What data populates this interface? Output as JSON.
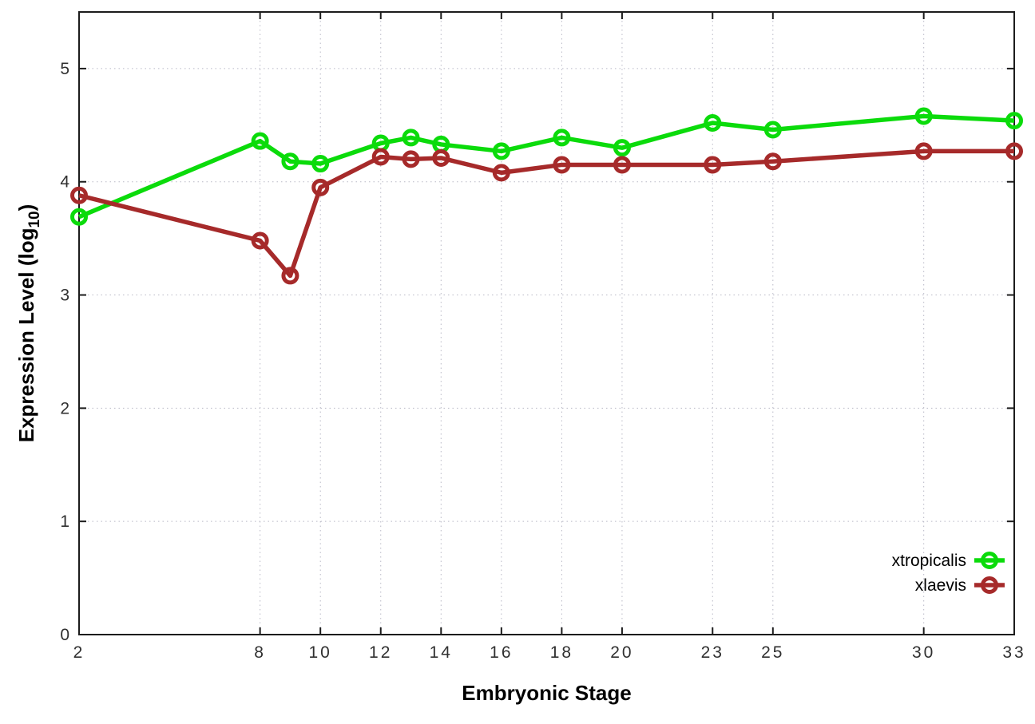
{
  "figure": {
    "background": "#ffffff",
    "border_color": "#1c1c1c",
    "grid_color": "#b9b9c6",
    "tick_label_color": "#303030"
  },
  "chart_data": {
    "type": "line",
    "title": "",
    "xlabel": "Embryonic Stage",
    "ylabel": {
      "prefix": "Expression Level (log",
      "subscript": "10",
      "suffix": ")"
    },
    "x": [
      2,
      8,
      9,
      10,
      12,
      13,
      14,
      16,
      18,
      20,
      23,
      25,
      30,
      33
    ],
    "series": [
      {
        "name": "xtropicalis",
        "color": "#0bdb0b",
        "marker": "open-circle",
        "values": [
          3.69,
          4.36,
          4.18,
          4.16,
          4.34,
          4.39,
          4.33,
          4.27,
          4.39,
          4.3,
          4.52,
          4.46,
          4.58,
          4.54
        ]
      },
      {
        "name": "xlaevis",
        "color": "#a62a2a",
        "marker": "open-circle",
        "values": [
          3.88,
          3.48,
          3.17,
          3.95,
          4.22,
          4.2,
          4.21,
          4.08,
          4.15,
          4.15,
          4.15,
          4.18,
          4.27,
          4.27
        ]
      }
    ],
    "xticks": [
      2,
      8,
      10,
      12,
      14,
      16,
      18,
      20,
      23,
      25,
      30,
      33
    ],
    "yticks": [
      0,
      1,
      2,
      3,
      4,
      5
    ],
    "xlim": [
      2,
      33
    ],
    "ylim": [
      0,
      5.5
    ],
    "grid": "dotted",
    "ticks_mirrored": true,
    "legend_position": "bottom-right"
  }
}
